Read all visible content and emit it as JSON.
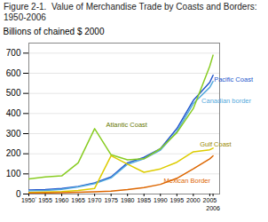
{
  "chart_data": {
    "type": "line",
    "title": "Figure 2-1.  Value of Merchandise Trade by Coasts and Borders: 1950-2006",
    "ylabel": "Billions of chained $ 2000",
    "x": [
      1950,
      1955,
      1960,
      1965,
      1970,
      1975,
      1980,
      1985,
      1990,
      1995,
      2000,
      2005,
      2006
    ],
    "series": [
      {
        "name": "Pacific Coast",
        "color": "#2255cc",
        "values": [
          20,
          22,
          28,
          38,
          55,
          85,
          155,
          182,
          225,
          325,
          465,
          555,
          590
        ]
      },
      {
        "name": "Canadian border",
        "color": "#55aadd",
        "values": [
          16,
          18,
          23,
          35,
          52,
          80,
          148,
          175,
          218,
          310,
          450,
          530,
          560
        ]
      },
      {
        "name": "Atlantic Coast",
        "color": "#88cc22",
        "values": [
          75,
          85,
          90,
          155,
          325,
          195,
          170,
          175,
          225,
          305,
          425,
          635,
          690
        ]
      },
      {
        "name": "Gulf Coast",
        "color": "#ddcc00",
        "values": [
          8,
          10,
          12,
          18,
          28,
          190,
          148,
          108,
          125,
          158,
          210,
          220,
          228
        ]
      },
      {
        "name": "Mexican Border",
        "color": "#dd6600",
        "values": [
          4,
          5,
          7,
          9,
          11,
          14,
          22,
          32,
          48,
          78,
          125,
          175,
          190
        ]
      }
    ],
    "annotations": [
      {
        "text": "Pacific Coast",
        "x": 2006.3,
        "y": 570,
        "color": "#2255cc"
      },
      {
        "text": "Canadian border",
        "x": 2002.5,
        "y": 462,
        "color": "#55aadd"
      },
      {
        "text": "Atlantic Coast",
        "x": 1973.5,
        "y": 345,
        "color": "#667700"
      },
      {
        "text": "Gulf Coast",
        "x": 2002.0,
        "y": 248,
        "color": "#998800"
      },
      {
        "text": "Mexican Border",
        "x": 1991.0,
        "y": 65,
        "color": "#dd6600"
      }
    ],
    "xlim": [
      1950,
      2008
    ],
    "xticks": [
      {
        "value": 1950,
        "label": "1950ʼ"
      },
      1955,
      1960,
      1965,
      1970,
      1975,
      1980,
      1985,
      1990,
      1995,
      2000,
      2005,
      2006
    ],
    "ylim": [
      0,
      750
    ],
    "yticks": [
      0,
      100,
      200,
      300,
      400,
      500,
      600,
      700
    ],
    "grid": true
  }
}
